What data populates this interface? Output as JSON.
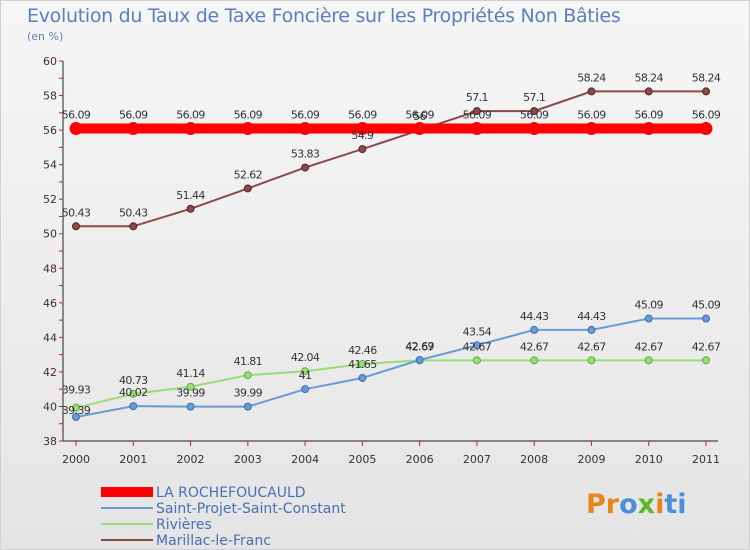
{
  "chart_data": {
    "type": "line",
    "title": "Evolution du Taux de Taxe Foncière sur les Propriétés Non Bâties",
    "subtitle": "(en %)",
    "xlabel": "",
    "ylabel": "",
    "x": [
      "2000",
      "2001",
      "2002",
      "2003",
      "2004",
      "2005",
      "2006",
      "2007",
      "2008",
      "2009",
      "2010",
      "2011"
    ],
    "ylim": [
      38,
      60
    ],
    "yticks": [
      38,
      40,
      42,
      44,
      46,
      48,
      50,
      52,
      54,
      56,
      58,
      60
    ],
    "grid": false,
    "legend_position": "bottom-left",
    "series": [
      {
        "name": "LA ROCHEFOUCAULD",
        "color": "#ff0000",
        "values": [
          56.09,
          56.09,
          56.09,
          56.09,
          56.09,
          56.09,
          56.09,
          56.09,
          56.09,
          56.09,
          56.09,
          56.09
        ],
        "labels": [
          "56.09",
          "56.09",
          "56.09",
          "56.09",
          "56.09",
          "56.09",
          "56.09",
          "56.09",
          "56.09",
          "56.09",
          "56.09",
          "56.09"
        ]
      },
      {
        "name": "Saint-Projet-Saint-Constant",
        "color": "#6b9bd2",
        "values": [
          39.39,
          40.02,
          39.99,
          39.99,
          41,
          41.65,
          42.69,
          43.54,
          44.43,
          44.43,
          45.09,
          45.09
        ],
        "labels": [
          "39.39",
          "40.02",
          "39.99",
          "39.99",
          "41",
          "41.65",
          "42.69",
          "43.54",
          "44.43",
          "44.43",
          "45.09",
          "45.09"
        ]
      },
      {
        "name": "Rivières",
        "color": "#99dd77",
        "values": [
          39.93,
          40.73,
          41.14,
          41.81,
          42.04,
          42.46,
          42.67,
          42.67,
          42.67,
          42.67,
          42.67,
          42.67
        ],
        "labels": [
          "39.93",
          "40.73",
          "41.14",
          "41.81",
          "42.04",
          "42.46",
          "42.67",
          "42.67",
          "42.67",
          "42.67",
          "42.67",
          "42.67"
        ]
      },
      {
        "name": "Marillac-le-Franc",
        "color": "#8a4a4a",
        "values": [
          50.43,
          50.43,
          51.44,
          52.62,
          53.83,
          54.9,
          56,
          57.1,
          57.1,
          58.24,
          58.24,
          58.24
        ],
        "labels": [
          "50.43",
          "50.43",
          "51.44",
          "52.62",
          "53.83",
          "54.9",
          "56",
          "57.1",
          "57.1",
          "58.24",
          "58.24",
          "58.24"
        ]
      }
    ]
  },
  "logo": {
    "text_parts": [
      "Pr",
      "o",
      "x",
      "i",
      "ti"
    ],
    "colors": [
      "#e8861a",
      "#4a90d9",
      "#5cb82e",
      "#e8861a",
      "#4a90d9"
    ]
  }
}
